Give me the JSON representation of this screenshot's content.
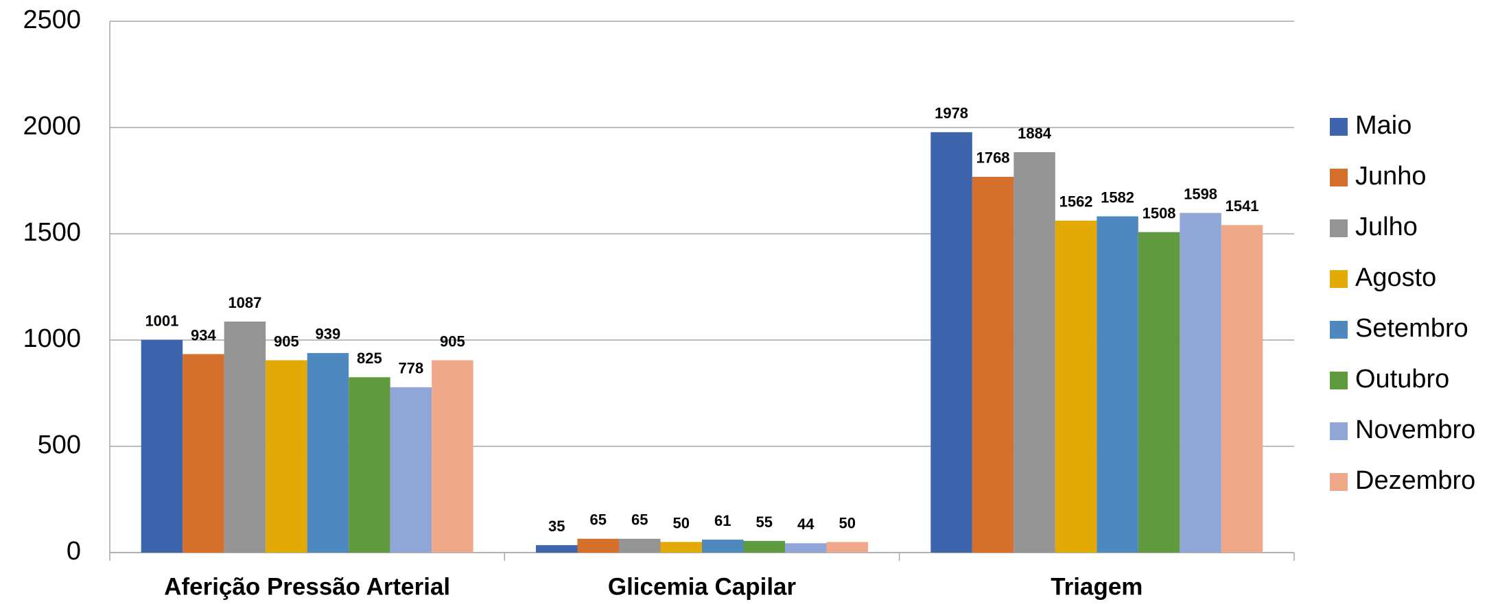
{
  "chart_data": {
    "type": "bar",
    "categories": [
      "Aferição Pressão Arterial",
      "Glicemia Capilar",
      "Triagem"
    ],
    "series": [
      {
        "name": "Maio",
        "color": "#3d64ad",
        "values": [
          1001,
          35,
          1978
        ]
      },
      {
        "name": "Junho",
        "color": "#d46f2c",
        "values": [
          934,
          65,
          1768
        ]
      },
      {
        "name": "Julho",
        "color": "#949494",
        "values": [
          1087,
          65,
          1884
        ]
      },
      {
        "name": "Agosto",
        "color": "#e3a905",
        "values": [
          905,
          50,
          1562
        ]
      },
      {
        "name": "Setembro",
        "color": "#4e88be",
        "values": [
          939,
          61,
          1582
        ]
      },
      {
        "name": "Outubro",
        "color": "#5f9a3e",
        "values": [
          825,
          55,
          1508
        ]
      },
      {
        "name": "Novembro",
        "color": "#8fa6d6",
        "values": [
          778,
          44,
          1598
        ]
      },
      {
        "name": "Dezembro",
        "color": "#f0a88a",
        "values": [
          905,
          50,
          1541
        ]
      }
    ],
    "ylim": [
      0,
      2500
    ],
    "yticks": [
      0,
      500,
      1000,
      1500,
      2000,
      2500
    ],
    "grid": true,
    "legend": "right"
  }
}
